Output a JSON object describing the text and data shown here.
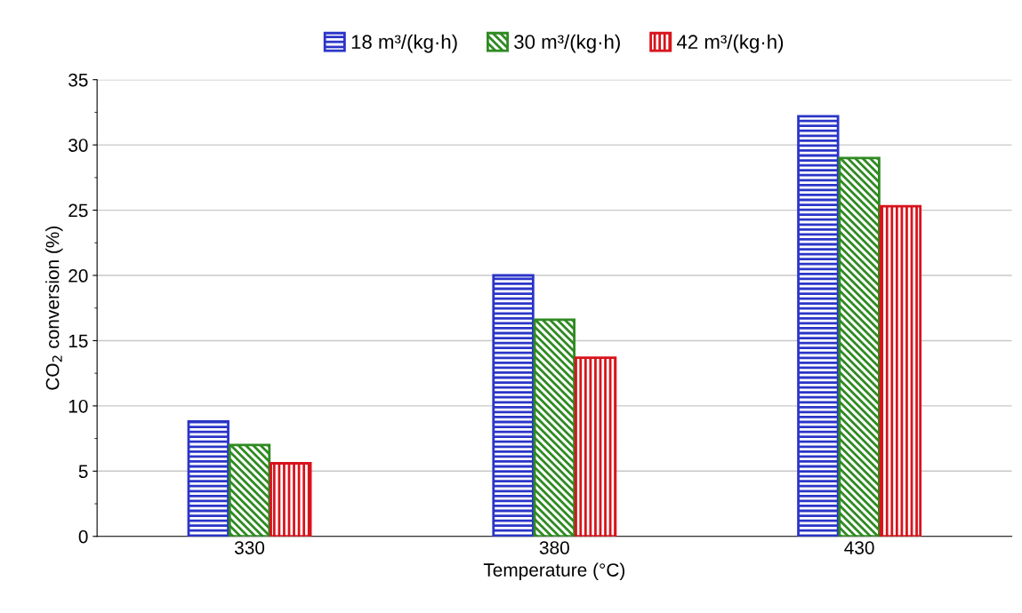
{
  "chart_data": {
    "type": "bar",
    "xlabel": "Temperature (°C)",
    "ylabel": "CO$_{2}$ conversion (%)",
    "categories": [
      "330",
      "380",
      "430"
    ],
    "series": [
      {
        "name": "18 m³/(kg·h)",
        "color": "#2b35c8",
        "values": [
          8.8,
          20.0,
          32.2
        ]
      },
      {
        "name": "30 m³/(kg·h)",
        "color": "#2f8a22",
        "values": [
          7.0,
          16.6,
          29.0
        ]
      },
      {
        "name": "42 m³/(kg·h)",
        "color": "#d8141c",
        "values": [
          5.6,
          13.7,
          25.3
        ]
      }
    ],
    "ylim": [
      0,
      35
    ],
    "yticks": [
      0,
      5,
      10,
      15,
      20,
      25,
      30,
      35
    ],
    "grid": "y",
    "legend": "top"
  }
}
